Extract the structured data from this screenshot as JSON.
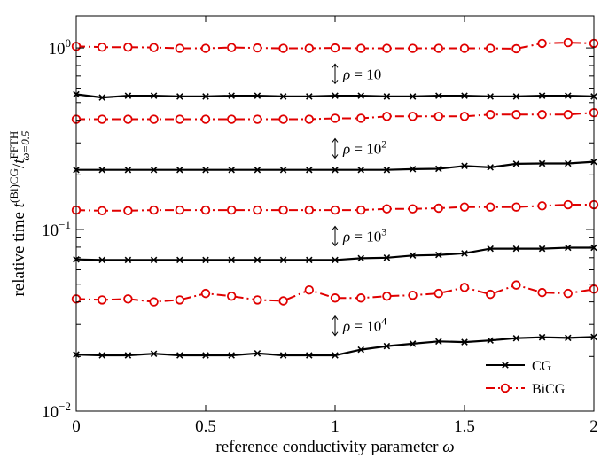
{
  "chart_data": {
    "type": "line",
    "xlabel": "reference conductivity parameter ω",
    "ylabel": "relative time t(Bi)CG / tFFTH ω=0.5",
    "ylabel_parts": {
      "main": "relative time ",
      "t1": "t",
      "sup1": "(Bi)CG",
      "slash": "/",
      "t2": "t",
      "sup2": "FFTH",
      "sub2": "ω=0.5"
    },
    "xlim": [
      0,
      2
    ],
    "ylim": [
      0.01,
      1.5
    ],
    "yscale": "log",
    "x_ticks": [
      0,
      0.5,
      1,
      1.5,
      2
    ],
    "x_tick_labels": [
      "0",
      "0.5",
      "1",
      "1.5",
      "2"
    ],
    "y_ticks": [
      0.01,
      0.1,
      1
    ],
    "y_tick_labels": [
      {
        "base": "10",
        "exp": "−2"
      },
      {
        "base": "10",
        "exp": "−1"
      },
      {
        "base": "10",
        "exp": "0"
      }
    ],
    "legend": {
      "placement": "bottom-right",
      "entries": [
        {
          "name": "CG",
          "color": "#000000",
          "marker": "x",
          "line": "solid"
        },
        {
          "name": "BiCG",
          "color": "#e00000",
          "marker": "o",
          "line": "dashdot"
        }
      ]
    },
    "annotations": [
      {
        "text": "ρ = 10",
        "exp": "",
        "x": 1.0,
        "y": 0.72
      },
      {
        "text": "ρ = 10",
        "exp": "2",
        "x": 1.0,
        "y": 0.28
      },
      {
        "text": "ρ = 10",
        "exp": "3",
        "x": 1.0,
        "y": 0.092
      },
      {
        "text": "ρ = 10",
        "exp": "4",
        "x": 1.0,
        "y": 0.0295
      }
    ],
    "x": [
      0,
      0.1,
      0.2,
      0.3,
      0.4,
      0.5,
      0.6,
      0.7,
      0.8,
      0.9,
      1.0,
      1.1,
      1.2,
      1.3,
      1.4,
      1.5,
      1.6,
      1.7,
      1.8,
      1.9,
      2.0
    ],
    "series": [
      {
        "group": "ρ=10",
        "legend": "CG",
        "values": [
          0.555,
          0.533,
          0.545,
          0.545,
          0.54,
          0.54,
          0.545,
          0.545,
          0.54,
          0.54,
          0.545,
          0.545,
          0.54,
          0.54,
          0.545,
          0.545,
          0.54,
          0.54,
          0.545,
          0.545,
          0.54
        ]
      },
      {
        "group": "ρ=10",
        "legend": "BiCG",
        "values": [
          1.02,
          1.01,
          1.01,
          1.005,
          0.995,
          0.995,
          1.005,
          1.0,
          0.995,
          0.995,
          1.0,
          0.995,
          0.995,
          0.995,
          0.995,
          0.995,
          0.995,
          0.99,
          1.06,
          1.07,
          1.06
        ]
      },
      {
        "group": "ρ=10²",
        "legend": "CG",
        "values": [
          0.213,
          0.213,
          0.213,
          0.213,
          0.213,
          0.213,
          0.213,
          0.213,
          0.213,
          0.213,
          0.213,
          0.213,
          0.213,
          0.215,
          0.216,
          0.224,
          0.22,
          0.23,
          0.231,
          0.231,
          0.236
        ]
      },
      {
        "group": "ρ=10²",
        "legend": "BiCG",
        "values": [
          0.405,
          0.405,
          0.405,
          0.405,
          0.405,
          0.405,
          0.405,
          0.405,
          0.405,
          0.405,
          0.41,
          0.41,
          0.42,
          0.42,
          0.42,
          0.42,
          0.43,
          0.43,
          0.43,
          0.43,
          0.44
        ]
      },
      {
        "group": "ρ=10³",
        "legend": "CG",
        "values": [
          0.0685,
          0.068,
          0.068,
          0.068,
          0.068,
          0.068,
          0.068,
          0.068,
          0.068,
          0.068,
          0.068,
          0.0695,
          0.07,
          0.072,
          0.0725,
          0.074,
          0.0785,
          0.0785,
          0.0785,
          0.0795,
          0.0795
        ]
      },
      {
        "group": "ρ=10³",
        "legend": "BiCG",
        "values": [
          0.128,
          0.127,
          0.127,
          0.128,
          0.128,
          0.128,
          0.128,
          0.128,
          0.128,
          0.128,
          0.128,
          0.128,
          0.13,
          0.13,
          0.131,
          0.133,
          0.133,
          0.133,
          0.135,
          0.137,
          0.137
        ]
      },
      {
        "group": "ρ=10⁴",
        "legend": "CG",
        "values": [
          0.0205,
          0.0203,
          0.0203,
          0.0207,
          0.0203,
          0.0203,
          0.0203,
          0.0208,
          0.0203,
          0.0203,
          0.0203,
          0.0218,
          0.0228,
          0.0235,
          0.0242,
          0.024,
          0.0245,
          0.0252,
          0.0255,
          0.0253,
          0.0256
        ]
      },
      {
        "group": "ρ=10⁴",
        "legend": "BiCG",
        "values": [
          0.0415,
          0.041,
          0.0415,
          0.04,
          0.041,
          0.0445,
          0.043,
          0.041,
          0.0405,
          0.0465,
          0.042,
          0.042,
          0.043,
          0.0435,
          0.0445,
          0.048,
          0.044,
          0.0495,
          0.045,
          0.0445,
          0.047
        ]
      }
    ]
  }
}
